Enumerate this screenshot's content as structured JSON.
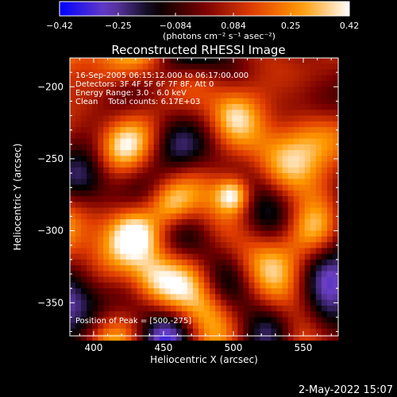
{
  "chart_data": {
    "type": "heatmap",
    "title": "Reconstructed RHESSI Image",
    "xlabel": "Heliocentric X (arcsec)",
    "ylabel": "Heliocentric Y (arcsec)",
    "xlim": [
      383,
      575
    ],
    "ylim": [
      -373,
      -180
    ],
    "xticks": [
      400,
      450,
      500,
      550
    ],
    "yticks": [
      -200,
      -250,
      -300,
      -350
    ],
    "colorbar": {
      "min": -0.42,
      "max": 0.42,
      "ticks": [
        "-0.42",
        "-0.25",
        "-0.084",
        "0.084",
        "0.25",
        "0.42"
      ],
      "label": "(photons cm⁻² s⁻¹ asec⁻²)",
      "colors": [
        "#0000ff",
        "#6a3fc0",
        "#000000",
        "#7a0000",
        "#e13d00",
        "#ff9a00",
        "#ffffff"
      ]
    },
    "annotations": [
      "16-Sep-2005 06:15:12.000 to 06:17:00.000",
      "Detectors: 3F 4F 5F 6F 7F 8F, Att 0",
      "Energy Range: 3.0 - 6.0 keV",
      "Clean    Total counts: 6.17E+03"
    ],
    "peak_label": "Position of Peak = [500,-275]",
    "sources": [
      {
        "x": 500,
        "y": -275,
        "sigma": 9,
        "amp": 0.42
      },
      {
        "x": 455,
        "y": -282,
        "sigma": 11,
        "amp": 0.24
      },
      {
        "x": 430,
        "y": -300,
        "sigma": 12,
        "amp": 0.17
      },
      {
        "x": 540,
        "y": -255,
        "sigma": 16,
        "amp": 0.17
      },
      {
        "x": 470,
        "y": -230,
        "sigma": 13,
        "amp": 0.16
      },
      {
        "x": 440,
        "y": -335,
        "sigma": 11,
        "amp": 0.15
      },
      {
        "x": 515,
        "y": -320,
        "sigma": 15,
        "amp": 0.16
      },
      {
        "x": 555,
        "y": -300,
        "sigma": 12,
        "amp": 0.13
      },
      {
        "x": 420,
        "y": -240,
        "sigma": 11,
        "amp": 0.12
      },
      {
        "x": 500,
        "y": -220,
        "sigma": 10,
        "amp": 0.1
      },
      {
        "x": 480,
        "y": -355,
        "sigma": 11,
        "amp": 0.1
      }
    ],
    "negative_regions": [
      {
        "x": 395,
        "y": -265,
        "sigma": 14,
        "amp": 0.22
      },
      {
        "x": 398,
        "y": -355,
        "sigma": 16,
        "amp": 0.3
      },
      {
        "x": 565,
        "y": -215,
        "sigma": 13,
        "amp": 0.18
      },
      {
        "x": 565,
        "y": -360,
        "sigma": 15,
        "amp": 0.24
      },
      {
        "x": 530,
        "y": -370,
        "sigma": 12,
        "amp": 0.14
      },
      {
        "x": 455,
        "y": -185,
        "sigma": 12,
        "amp": 0.1
      }
    ]
  },
  "footer": {
    "date": "2-May-2022 15:07"
  }
}
